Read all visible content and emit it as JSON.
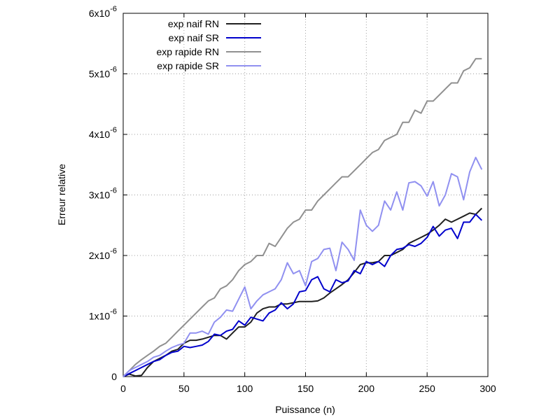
{
  "chart_data": {
    "type": "line",
    "title": "",
    "xlabel": "Puissance (n)",
    "ylabel": "Erreur relative",
    "xlim": [
      0,
      300
    ],
    "ylim": [
      0,
      6e-06
    ],
    "grid": true,
    "legend_position": "top-left",
    "x_ticks": [
      {
        "value": 0,
        "label": "0"
      },
      {
        "value": 50,
        "label": "50"
      },
      {
        "value": 100,
        "label": "100"
      },
      {
        "value": 150,
        "label": "150"
      },
      {
        "value": 200,
        "label": "200"
      },
      {
        "value": 250,
        "label": "250"
      },
      {
        "value": 300,
        "label": "300"
      }
    ],
    "y_ticks": [
      {
        "value": 0,
        "mantissa": "0",
        "exponent": ""
      },
      {
        "value": 1e-06,
        "mantissa": "1x10",
        "exponent": "-6"
      },
      {
        "value": 2e-06,
        "mantissa": "2x10",
        "exponent": "-6"
      },
      {
        "value": 3e-06,
        "mantissa": "3x10",
        "exponent": "-6"
      },
      {
        "value": 4e-06,
        "mantissa": "4x10",
        "exponent": "-6"
      },
      {
        "value": 5e-06,
        "mantissa": "5x10",
        "exponent": "-6"
      },
      {
        "value": 6e-06,
        "mantissa": "6x10",
        "exponent": "-6"
      }
    ],
    "x": [
      0,
      5,
      10,
      15,
      20,
      25,
      30,
      35,
      40,
      45,
      50,
      55,
      60,
      65,
      70,
      75,
      80,
      85,
      90,
      95,
      100,
      105,
      110,
      115,
      120,
      125,
      130,
      135,
      140,
      145,
      150,
      155,
      160,
      165,
      170,
      175,
      180,
      185,
      190,
      195,
      200,
      205,
      210,
      215,
      220,
      225,
      230,
      235,
      240,
      245,
      250,
      255,
      260,
      265,
      270,
      275,
      280,
      285,
      290,
      295
    ],
    "series": [
      {
        "name": "exp naif RN",
        "color": "#202020",
        "values": [
          0,
          0.04,
          0.01,
          0.02,
          0.15,
          0.25,
          0.3,
          0.35,
          0.42,
          0.45,
          0.55,
          0.6,
          0.6,
          0.62,
          0.65,
          0.68,
          0.68,
          0.62,
          0.72,
          0.82,
          0.82,
          0.9,
          1.05,
          1.12,
          1.15,
          1.15,
          1.2,
          1.2,
          1.22,
          1.24,
          1.24,
          1.24,
          1.25,
          1.3,
          1.38,
          1.45,
          1.52,
          1.6,
          1.72,
          1.85,
          1.88,
          1.88,
          1.9,
          2.0,
          2.0,
          2.05,
          2.1,
          2.2,
          2.25,
          2.3,
          2.35,
          2.42,
          2.5,
          2.6,
          2.55,
          2.6,
          2.65,
          2.7,
          2.68,
          2.78
        ]
      },
      {
        "name": "exp naif SR",
        "color": "#0000cc",
        "values": [
          0,
          0.05,
          0.1,
          0.15,
          0.2,
          0.25,
          0.28,
          0.35,
          0.4,
          0.42,
          0.5,
          0.48,
          0.5,
          0.52,
          0.58,
          0.7,
          0.68,
          0.75,
          0.78,
          0.92,
          0.85,
          0.98,
          0.95,
          0.92,
          1.05,
          1.1,
          1.22,
          1.12,
          1.2,
          1.4,
          1.42,
          1.6,
          1.65,
          1.45,
          1.4,
          1.6,
          1.55,
          1.58,
          1.75,
          1.7,
          1.9,
          1.85,
          1.9,
          1.82,
          2.0,
          2.1,
          2.12,
          2.18,
          2.15,
          2.2,
          2.3,
          2.48,
          2.32,
          2.42,
          2.45,
          2.28,
          2.55,
          2.55,
          2.68,
          2.58
        ]
      },
      {
        "name": "exp rapide RN",
        "color": "#909090",
        "values": [
          0,
          0.1,
          0.2,
          0.28,
          0.35,
          0.42,
          0.5,
          0.55,
          0.65,
          0.75,
          0.85,
          0.95,
          1.05,
          1.15,
          1.25,
          1.3,
          1.45,
          1.5,
          1.6,
          1.75,
          1.85,
          1.9,
          2.0,
          2.0,
          2.2,
          2.15,
          2.3,
          2.45,
          2.55,
          2.6,
          2.75,
          2.75,
          2.9,
          3.0,
          3.1,
          3.2,
          3.3,
          3.3,
          3.4,
          3.5,
          3.6,
          3.7,
          3.75,
          3.9,
          3.95,
          4.0,
          4.2,
          4.2,
          4.4,
          4.35,
          4.55,
          4.55,
          4.65,
          4.75,
          4.85,
          4.85,
          5.05,
          5.1,
          5.25,
          5.25
        ]
      },
      {
        "name": "exp rapide SR",
        "color": "#9090f0",
        "values": [
          0,
          0.1,
          0.15,
          0.2,
          0.25,
          0.32,
          0.35,
          0.42,
          0.48,
          0.52,
          0.55,
          0.72,
          0.72,
          0.75,
          0.7,
          0.9,
          0.98,
          1.1,
          1.08,
          1.28,
          1.48,
          1.12,
          1.25,
          1.35,
          1.4,
          1.45,
          1.6,
          1.88,
          1.7,
          1.75,
          1.5,
          1.9,
          1.95,
          2.1,
          2.12,
          1.75,
          2.22,
          2.1,
          1.92,
          2.75,
          2.5,
          2.4,
          2.5,
          2.9,
          2.75,
          3.05,
          2.75,
          3.2,
          3.22,
          3.15,
          2.98,
          3.22,
          2.82,
          3.0,
          3.35,
          3.3,
          2.92,
          3.38,
          3.62,
          3.42
        ]
      }
    ],
    "value_scale": 1e-06
  }
}
